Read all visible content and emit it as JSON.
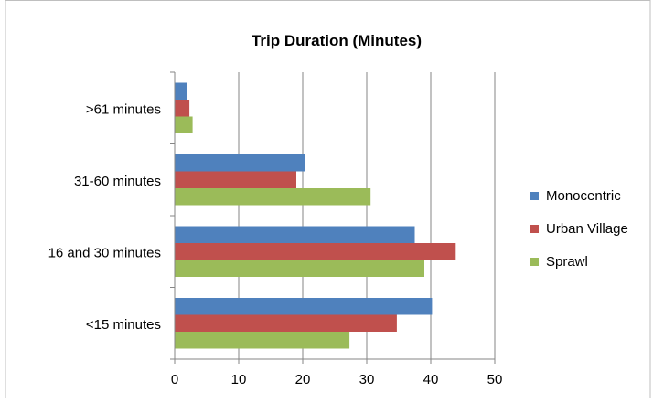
{
  "chart_data": {
    "type": "bar",
    "orientation": "horizontal",
    "title": "Trip Duration (Minutes)",
    "xlabel": "",
    "ylabel": "",
    "categories": [
      "<15 minutes",
      "16 and 30 minutes",
      "31-60 minutes",
      ">61 minutes"
    ],
    "series": [
      {
        "name": "Monocentric",
        "color": "#4F81BD",
        "values": [
          40.2,
          37.5,
          20.3,
          1.9
        ]
      },
      {
        "name": "Urban Village",
        "color": "#C0504D",
        "values": [
          34.7,
          43.9,
          19.0,
          2.3
        ]
      },
      {
        "name": "Sprawl",
        "color": "#9BBB59",
        "values": [
          27.3,
          39.0,
          30.6,
          2.8
        ]
      }
    ],
    "xlim": [
      0,
      50
    ],
    "xticks": [
      0,
      10,
      20,
      30,
      40,
      50
    ],
    "grid": true,
    "legend_position": "right"
  }
}
